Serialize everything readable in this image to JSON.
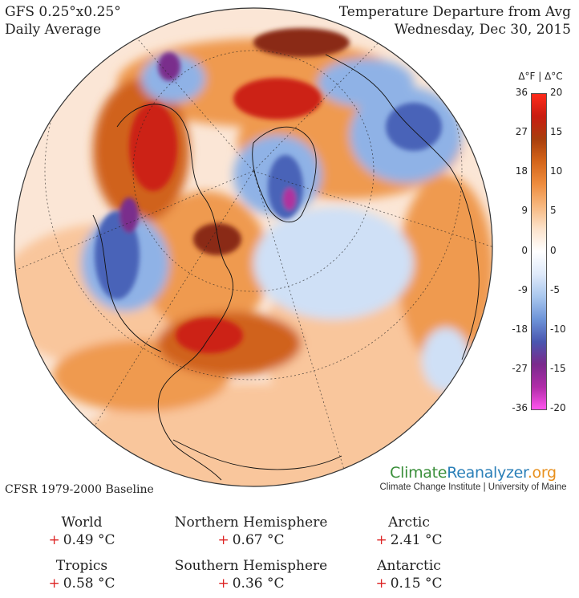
{
  "header": {
    "left_line1": "GFS 0.25°x0.25°",
    "left_line2": "Daily Average",
    "right_line1": "Temperature Departure from Avg",
    "right_line2": "Wednesday, Dec 30, 2015"
  },
  "legend": {
    "units_label": "Δ°F  |  Δ°C",
    "fahrenheit_ticks": [
      "36",
      "27",
      "18",
      "9",
      "0",
      "-9",
      "-18",
      "-27",
      "-36"
    ],
    "celsius_ticks": [
      "20",
      "15",
      "10",
      "5",
      "0",
      "-5",
      "-10",
      "-15",
      "-20"
    ],
    "colors": [
      "#ff55ee",
      "#b02ca8",
      "#7a2a8c",
      "#4a56b0",
      "#6e94d8",
      "#a9c7ee",
      "#dfeafa",
      "#ffffff",
      "#fce3cc",
      "#f7b880",
      "#ee8c3e",
      "#d4651a",
      "#a83e0c",
      "#c81c10",
      "#ff2a1a"
    ]
  },
  "map": {
    "colors": {
      "ocean_base": "#fbe6d6",
      "warm_light": "#f9c69c",
      "warm": "#ef9a4f",
      "warm_strong": "#d0621a",
      "hot": "#cc2216",
      "hot_dark": "#8a2a12",
      "cool_light": "#cfe0f6",
      "cool": "#8fb2e6",
      "cold": "#4a64b8",
      "very_cold": "#7a2f8c",
      "extreme_cold": "#b0319e",
      "border_line": "#111111"
    }
  },
  "brand": {
    "name_part1": "Climate",
    "name_part2": "Reanalyzer",
    "name_part3": ".org",
    "subtitle": "Climate Change Institute | University of Maine"
  },
  "baseline": "CFSR 1979-2000 Baseline",
  "stats": [
    {
      "label": "World",
      "sign": "+",
      "value": "0.49 °C"
    },
    {
      "label": "Northern Hemisphere",
      "sign": "+",
      "value": "0.67 °C"
    },
    {
      "label": "Arctic",
      "sign": "+",
      "value": "2.41 °C"
    },
    {
      "label": "Tropics",
      "sign": "+",
      "value": "0.58 °C"
    },
    {
      "label": "Southern Hemisphere",
      "sign": "+",
      "value": "0.36 °C"
    },
    {
      "label": "Antarctic",
      "sign": "+",
      "value": "0.15 °C"
    }
  ]
}
